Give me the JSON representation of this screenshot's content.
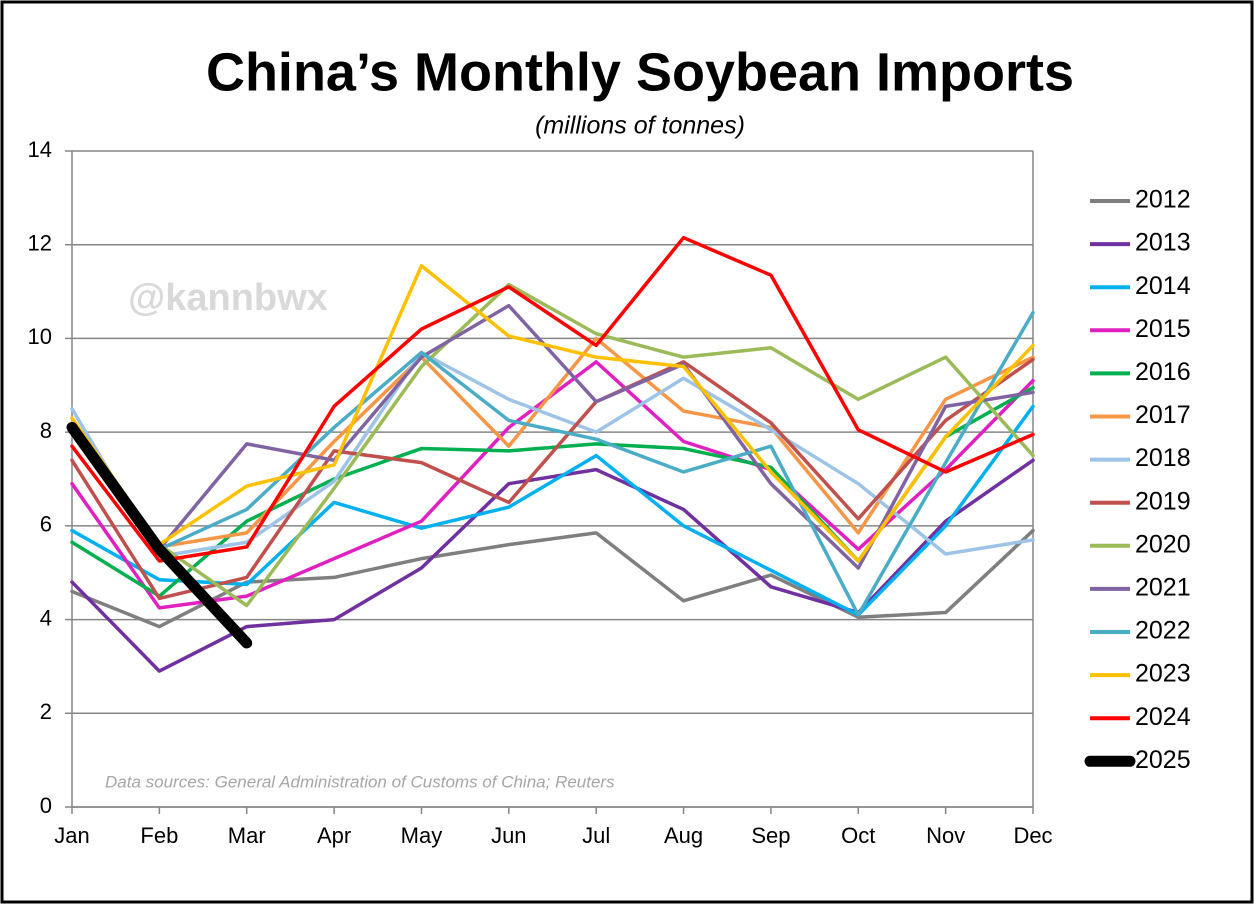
{
  "chart_data": {
    "type": "line",
    "title": "China’s Monthly Soybean Imports",
    "subtitle": "(millions of tonnes)",
    "watermark": "@kannbwx",
    "annotation": "Data sources: General Administration of Customs of China; Reuters",
    "categories": [
      "Jan",
      "Feb",
      "Mar",
      "Apr",
      "May",
      "Jun",
      "Jul",
      "Aug",
      "Sep",
      "Oct",
      "Nov",
      "Dec"
    ],
    "ylim": [
      0,
      14
    ],
    "yticks": [
      0,
      2,
      4,
      6,
      8,
      10,
      12,
      14
    ],
    "grid": true,
    "legend": "right",
    "series": [
      {
        "name": "2012",
        "color": "#7f7f7f",
        "values": [
          4.6,
          3.85,
          4.8,
          4.9,
          5.3,
          5.6,
          5.85,
          4.4,
          4.95,
          4.05,
          4.15,
          5.9
        ]
      },
      {
        "name": "2013",
        "color": "#7030a0",
        "values": [
          4.8,
          2.9,
          3.85,
          4.0,
          5.1,
          6.9,
          7.2,
          6.35,
          4.7,
          4.15,
          6.1,
          7.4
        ]
      },
      {
        "name": "2014",
        "color": "#00b0f0",
        "values": [
          5.9,
          4.85,
          4.75,
          6.5,
          5.95,
          6.4,
          7.5,
          6.0,
          5.05,
          4.1,
          6.0,
          8.55
        ]
      },
      {
        "name": "2015",
        "color": "#e020c0",
        "values": [
          6.9,
          4.25,
          4.5,
          5.3,
          6.1,
          8.1,
          9.5,
          7.8,
          7.2,
          5.5,
          7.2,
          9.1
        ]
      },
      {
        "name": "2016",
        "color": "#00b050",
        "values": [
          5.65,
          4.5,
          6.1,
          7.0,
          7.65,
          7.6,
          7.75,
          7.65,
          7.25,
          5.25,
          7.9,
          8.95
        ]
      },
      {
        "name": "2017",
        "color": "#f79646",
        "values": [
          8.0,
          5.55,
          5.85,
          7.8,
          9.6,
          7.7,
          10.0,
          8.45,
          8.1,
          5.85,
          8.7,
          9.6
        ]
      },
      {
        "name": "2018",
        "color": "#9dc3e6",
        "values": [
          8.5,
          5.35,
          5.65,
          6.95,
          9.7,
          8.7,
          8.0,
          9.15,
          8.05,
          6.9,
          5.4,
          5.7
        ]
      },
      {
        "name": "2019",
        "color": "#c0504d",
        "values": [
          7.4,
          4.45,
          4.9,
          7.6,
          7.35,
          6.5,
          8.65,
          9.5,
          8.2,
          6.15,
          8.25,
          9.55
        ]
      },
      {
        "name": "2020",
        "color": "#9bbb59",
        "values": [
          8.1,
          5.6,
          4.3,
          6.8,
          9.4,
          11.15,
          10.1,
          9.6,
          9.8,
          8.7,
          9.6,
          7.5
        ]
      },
      {
        "name": "2021",
        "color": "#8064a2",
        "values": [
          8.0,
          5.5,
          7.75,
          7.4,
          9.6,
          10.7,
          8.65,
          9.45,
          6.9,
          5.1,
          8.55,
          8.85
        ]
      },
      {
        "name": "2022",
        "color": "#4bacc6",
        "values": [
          8.1,
          5.5,
          6.35,
          8.1,
          9.7,
          8.25,
          7.85,
          7.15,
          7.7,
          4.1,
          7.35,
          10.55
        ]
      },
      {
        "name": "2023",
        "color": "#ffc000",
        "values": [
          8.3,
          5.6,
          6.85,
          7.3,
          11.55,
          10.05,
          9.6,
          9.4,
          7.15,
          5.25,
          7.9,
          9.85
        ]
      },
      {
        "name": "2024",
        "color": "#ff0000",
        "values": [
          7.7,
          5.25,
          5.55,
          8.55,
          10.2,
          11.1,
          9.85,
          12.15,
          11.35,
          8.05,
          7.15,
          7.95
        ]
      },
      {
        "name": "2025",
        "color": "#000000",
        "values": [
          8.1,
          5.5,
          3.5,
          null,
          null,
          null,
          null,
          null,
          null,
          null,
          null,
          null
        ]
      }
    ]
  }
}
